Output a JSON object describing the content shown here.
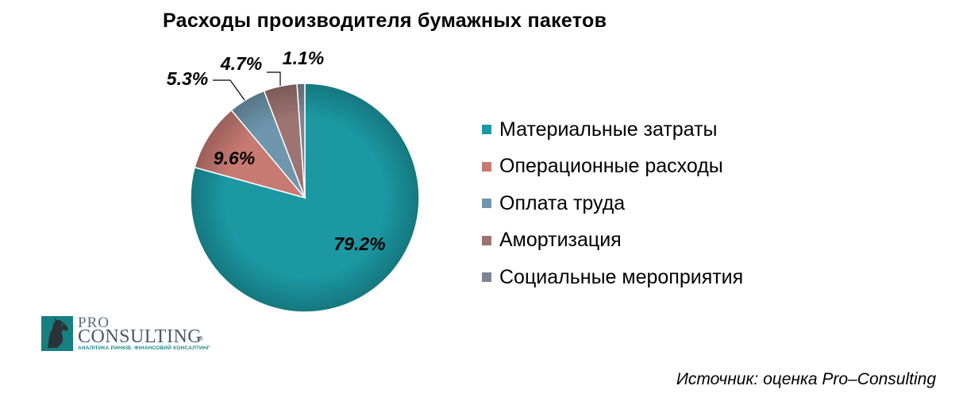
{
  "chart_data": {
    "type": "pie",
    "title": "Расходы производителя бумажных пакетов",
    "categories": [
      "Материальные затраты",
      "Операционные расходы",
      "Оплата труда",
      "Амортизация",
      "Социальные мероприятия"
    ],
    "values": [
      79.2,
      9.6,
      5.3,
      4.7,
      1.1
    ],
    "data_labels": [
      "79.2%",
      "9.6%",
      "5.3%",
      "4.7%",
      "1.1%"
    ],
    "colors": [
      "#1b98a2",
      "#c67a72",
      "#6f96ad",
      "#9c7471",
      "#7c8592"
    ],
    "legend_position": "right",
    "start_angle": "12 o'clock",
    "direction": "clockwise"
  },
  "logo": {
    "line1": "PRO",
    "line2": "CONSULTING",
    "registered": "®",
    "tagline": "АНАЛІТИКА РИНКІВ. ФІНАНСОВИЙ КОНСАЛТИНГ"
  },
  "source": "Источник: оценка Pro–Consulting"
}
